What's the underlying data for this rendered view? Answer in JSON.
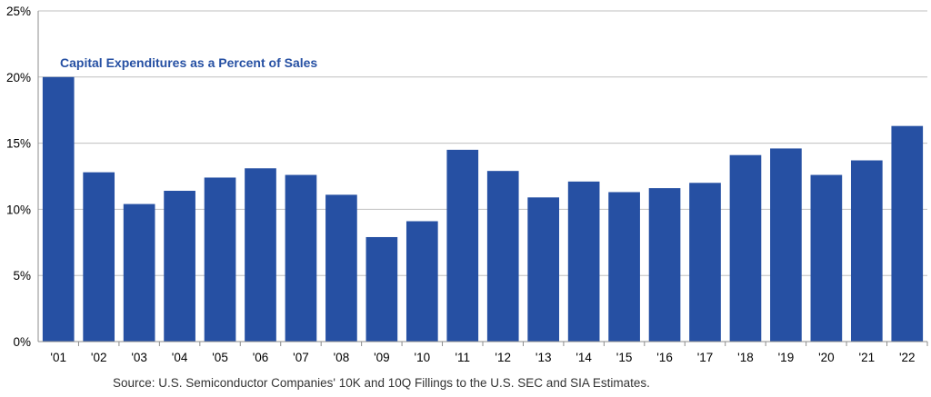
{
  "chart_data": {
    "type": "bar",
    "title": "Capital Expenditures as a Percent of Sales",
    "source": "Source: U.S. Semiconductor Companies' 10K and 10Q Fillings to the U.S. SEC and SIA Estimates.",
    "categories": [
      "'01",
      "'02",
      "'03",
      "'04",
      "'05",
      "'06",
      "'07",
      "'08",
      "'09",
      "'10",
      "'11",
      "'12",
      "'13",
      "'14",
      "'15",
      "'16",
      "'17",
      "'18",
      "'19",
      "'20",
      "'21",
      "'22"
    ],
    "values": [
      20.0,
      12.8,
      10.4,
      11.4,
      12.4,
      13.1,
      12.6,
      11.1,
      7.9,
      9.1,
      14.5,
      12.9,
      10.9,
      12.1,
      11.3,
      11.6,
      12.0,
      14.1,
      14.6,
      12.6,
      13.7,
      16.3
    ],
    "ylim": [
      0,
      25
    ],
    "yticks": [
      0,
      5,
      10,
      15,
      20,
      25
    ],
    "ytick_labels": [
      "0%",
      "5%",
      "10%",
      "15%",
      "20%",
      "25%"
    ],
    "grid": true,
    "colors": {
      "bar": "#2650a3",
      "title": "#2650a3",
      "grid": "#bfbfbf",
      "axis": "#8c8c8c",
      "text": "#000000",
      "source": "#333333"
    }
  }
}
